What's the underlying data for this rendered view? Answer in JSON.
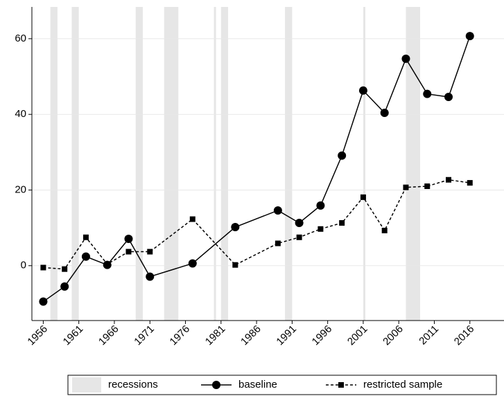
{
  "chart_data": {
    "type": "line",
    "x": [
      1956,
      1959,
      1962,
      1965,
      1968,
      1971,
      1977,
      1983,
      1989,
      1992,
      1995,
      1998,
      2001,
      2004,
      2007,
      2010,
      2013,
      2016
    ],
    "series": [
      {
        "name": "baseline",
        "color": "#000000",
        "dash": "solid",
        "marker": "circle",
        "values": [
          -9.5,
          -5.5,
          2.4,
          0.2,
          7.1,
          -2.9,
          0.6,
          10.2,
          14.6,
          11.3,
          15.9,
          29.1,
          46.3,
          40.4,
          54.7,
          45.4,
          44.6,
          60.7
        ]
      },
      {
        "name": "restricted sample",
        "color": "#000000",
        "dash": "dashed",
        "marker": "square",
        "values": [
          -0.5,
          -0.9,
          7.5,
          0.4,
          3.7,
          3.7,
          12.3,
          0.2,
          5.9,
          7.5,
          9.7,
          11.3,
          18.1,
          9.3,
          20.7,
          21.0,
          22.7,
          21.9
        ]
      }
    ],
    "recessions": {
      "name": "recessions",
      "color": "#e6e6e6",
      "periods": [
        [
          1957,
          1958
        ],
        [
          1960,
          1961
        ],
        [
          1969,
          1970
        ],
        [
          1973,
          1975
        ],
        [
          1980,
          1980.3
        ],
        [
          1981,
          1982
        ],
        [
          1990,
          1991
        ],
        [
          2001,
          2001.3
        ],
        [
          2007,
          2009
        ]
      ]
    },
    "xlim": [
      1954.4,
      2020.8
    ],
    "ylim": [
      -14.5,
      68.4
    ],
    "xticks": [
      1956,
      1961,
      1966,
      1971,
      1976,
      1981,
      1986,
      1991,
      1996,
      2001,
      2006,
      2011,
      2016
    ],
    "yticks": [
      0,
      20,
      40,
      60
    ],
    "grid": true,
    "legend": "bottom"
  }
}
